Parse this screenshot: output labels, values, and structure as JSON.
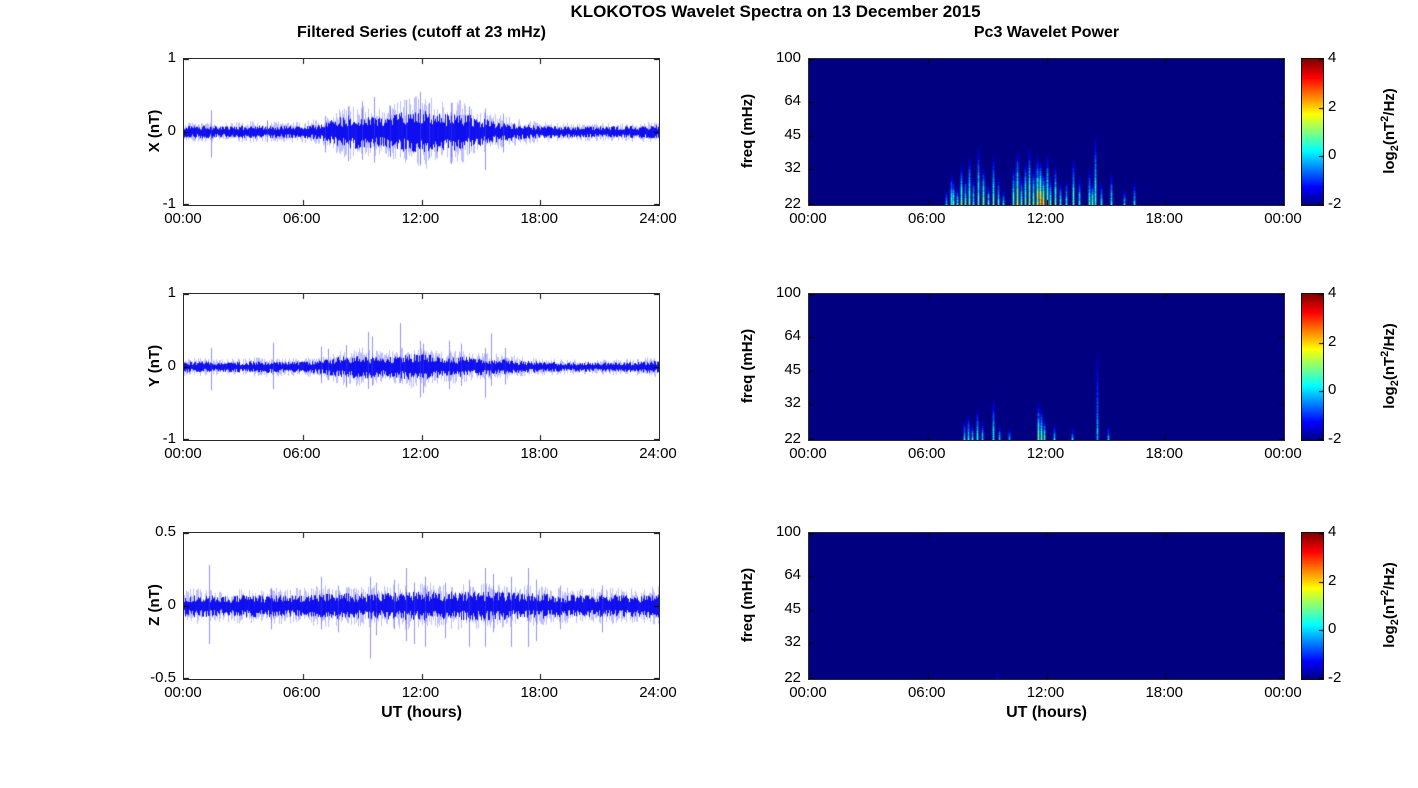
{
  "header": {
    "title": "KLOKOTOS Wavelet Spectra on 13 December 2015",
    "left_subtitle": "Filtered Series (cutoff at 23 mHz)",
    "right_subtitle": "Pc3 Wavelet Power"
  },
  "colorbar": {
    "colormap": "jet",
    "range": [
      -2,
      4
    ],
    "ticks": [
      {
        "v": 4,
        "label": "4"
      },
      {
        "v": 2,
        "label": "2"
      },
      {
        "v": 0,
        "label": "0"
      },
      {
        "v": -2,
        "label": "-2"
      }
    ],
    "label_parts": {
      "p1": "log",
      "sub": "2",
      "p2": "(nT",
      "sup": "2",
      "p3": "/Hz)"
    }
  },
  "chart_data": [
    {
      "id": "x-filtered-series",
      "type": "line",
      "ylabel": "X (nT)",
      "xlabel": "",
      "line_color": "#0000ee",
      "seed": 3,
      "xlim": [
        0,
        24
      ],
      "ylim": [
        -1,
        1
      ],
      "xticks": [
        {
          "v": 0,
          "label": "00:00"
        },
        {
          "v": 6,
          "label": "06:00"
        },
        {
          "v": 12,
          "label": "12:00"
        },
        {
          "v": 18,
          "label": "18:00"
        },
        {
          "v": 24,
          "label": "24:00"
        }
      ],
      "yticks": [
        {
          "v": 1,
          "label": "1"
        },
        {
          "v": 0,
          "label": "0"
        },
        {
          "v": -1,
          "label": "-1"
        }
      ],
      "envelope_nT": [
        0.08,
        0.08,
        0.07,
        0.08,
        0.09,
        0.08,
        0.08,
        0.11,
        0.2,
        0.22,
        0.18,
        0.25,
        0.3,
        0.23,
        0.25,
        0.17,
        0.13,
        0.1,
        0.08,
        0.07,
        0.07,
        0.07,
        0.07,
        0.08,
        0.09
      ],
      "spikes": [
        [
          1.35,
          0.3,
          0.35
        ],
        [
          4.2,
          0.16,
          0.14
        ],
        [
          7.1,
          0.22,
          0.28
        ],
        [
          8.3,
          0.35,
          0.4
        ],
        [
          9.0,
          0.42,
          0.38
        ],
        [
          9.6,
          0.48,
          0.42
        ],
        [
          10.4,
          0.36,
          0.34
        ],
        [
          11.2,
          0.44,
          0.38
        ],
        [
          11.9,
          0.55,
          0.44
        ],
        [
          12.4,
          0.4,
          0.36
        ],
        [
          13.5,
          0.4,
          0.44
        ],
        [
          14.4,
          0.35,
          0.3
        ],
        [
          15.2,
          0.32,
          0.52
        ],
        [
          16.1,
          0.25,
          0.28
        ]
      ]
    },
    {
      "id": "y-filtered-series",
      "type": "line",
      "ylabel": "Y (nT)",
      "xlabel": "",
      "line_color": "#0000ee",
      "seed": 7,
      "xlim": [
        0,
        24
      ],
      "ylim": [
        -1,
        1
      ],
      "xticks": [
        {
          "v": 0,
          "label": "00:00"
        },
        {
          "v": 6,
          "label": "06:00"
        },
        {
          "v": 12,
          "label": "12:00"
        },
        {
          "v": 18,
          "label": "18:00"
        },
        {
          "v": 24,
          "label": "24:00"
        }
      ],
      "yticks": [
        {
          "v": 1,
          "label": "1"
        },
        {
          "v": 0,
          "label": "0"
        },
        {
          "v": -1,
          "label": "-1"
        }
      ],
      "envelope_nT": [
        0.07,
        0.07,
        0.06,
        0.07,
        0.08,
        0.07,
        0.07,
        0.09,
        0.14,
        0.15,
        0.12,
        0.15,
        0.17,
        0.13,
        0.13,
        0.11,
        0.1,
        0.08,
        0.07,
        0.06,
        0.06,
        0.06,
        0.06,
        0.07,
        0.08
      ],
      "spikes": [
        [
          1.35,
          0.26,
          0.32
        ],
        [
          4.5,
          0.33,
          0.3
        ],
        [
          6.9,
          0.28,
          0.22
        ],
        [
          7.3,
          0.25,
          0.18
        ],
        [
          8.2,
          0.3,
          0.28
        ],
        [
          9.3,
          0.48,
          0.3
        ],
        [
          9.5,
          0.42,
          0.26
        ],
        [
          10.9,
          0.6,
          0.22
        ],
        [
          11.9,
          0.36,
          0.42
        ],
        [
          12.1,
          0.32,
          0.36
        ],
        [
          13.4,
          0.36,
          0.3
        ],
        [
          14.0,
          0.32,
          0.26
        ],
        [
          15.2,
          0.26,
          0.42
        ],
        [
          15.5,
          0.46,
          0.26
        ],
        [
          16.2,
          0.26,
          0.24
        ]
      ]
    },
    {
      "id": "z-filtered-series",
      "type": "line",
      "ylabel": "Z (nT)",
      "xlabel": "UT (hours)",
      "line_color": "#0000ee",
      "seed": 13,
      "xlim": [
        0,
        24
      ],
      "ylim": [
        -0.5,
        0.5
      ],
      "xticks": [
        {
          "v": 0,
          "label": "00:00"
        },
        {
          "v": 6,
          "label": "06:00"
        },
        {
          "v": 12,
          "label": "12:00"
        },
        {
          "v": 18,
          "label": "18:00"
        },
        {
          "v": 24,
          "label": "24:00"
        }
      ],
      "yticks": [
        {
          "v": 0.5,
          "label": "0.5"
        },
        {
          "v": 0,
          "label": "0"
        },
        {
          "v": -0.5,
          "label": "-0.5"
        }
      ],
      "envelope_nT": [
        0.07,
        0.07,
        0.06,
        0.07,
        0.07,
        0.07,
        0.07,
        0.08,
        0.08,
        0.08,
        0.08,
        0.09,
        0.09,
        0.09,
        0.09,
        0.09,
        0.09,
        0.08,
        0.08,
        0.07,
        0.07,
        0.07,
        0.07,
        0.07,
        0.08
      ],
      "spikes": [
        [
          1.25,
          0.28,
          0.26
        ],
        [
          4.4,
          0.12,
          0.16
        ],
        [
          6.9,
          0.2,
          0.16
        ],
        [
          7.8,
          0.14,
          0.18
        ],
        [
          9.4,
          0.2,
          0.36
        ],
        [
          9.7,
          0.16,
          0.2
        ],
        [
          10.6,
          0.18,
          0.16
        ],
        [
          11.2,
          0.26,
          0.24
        ],
        [
          11.6,
          0.16,
          0.26
        ],
        [
          12.2,
          0.2,
          0.28
        ],
        [
          13.2,
          0.16,
          0.22
        ],
        [
          14.4,
          0.18,
          0.28
        ],
        [
          15.2,
          0.26,
          0.28
        ],
        [
          15.6,
          0.22,
          0.18
        ],
        [
          16.5,
          0.2,
          0.28
        ],
        [
          17.4,
          0.26,
          0.28
        ],
        [
          17.8,
          0.18,
          0.24
        ],
        [
          19.0,
          0.14,
          0.16
        ],
        [
          21.1,
          0.14,
          0.18
        ]
      ]
    },
    {
      "id": "x-wavelet-power",
      "type": "heatmap",
      "ylabel": "freq (mHz)",
      "xlabel": "",
      "seed": 21,
      "yscale": "log",
      "xlim": [
        0,
        24
      ],
      "ylim": [
        22,
        100
      ],
      "value_range": [
        -2,
        4
      ],
      "background_value": -2,
      "xticks": [
        {
          "v": 0,
          "label": "00:00"
        },
        {
          "v": 6,
          "label": "06:00"
        },
        {
          "v": 12,
          "label": "12:00"
        },
        {
          "v": 18,
          "label": "18:00"
        },
        {
          "v": 24,
          "label": "00:00"
        }
      ],
      "yticks": [
        {
          "v": 100,
          "label": "100"
        },
        {
          "v": 64,
          "label": "64"
        },
        {
          "v": 45,
          "label": "45"
        },
        {
          "v": 32,
          "label": "32"
        },
        {
          "v": 22,
          "label": "22"
        }
      ],
      "streaks": [
        [
          6.9,
          26,
          0.0
        ],
        [
          7.15,
          31,
          0.6
        ],
        [
          7.3,
          29,
          0.9
        ],
        [
          7.5,
          27,
          0.4
        ],
        [
          7.7,
          34,
          1.1
        ],
        [
          7.9,
          30,
          0.6
        ],
        [
          8.1,
          37,
          0.9
        ],
        [
          8.3,
          30,
          0.5
        ],
        [
          8.55,
          41,
          0.8
        ],
        [
          8.8,
          33,
          1.3
        ],
        [
          9.05,
          28,
          0.5
        ],
        [
          9.3,
          37,
          0.9
        ],
        [
          9.55,
          30,
          0.5
        ],
        [
          9.8,
          26,
          0.2
        ],
        [
          10.3,
          33,
          0.9
        ],
        [
          10.5,
          39,
          1.4
        ],
        [
          10.7,
          30,
          0.8
        ],
        [
          10.9,
          35,
          1.1
        ],
        [
          11.1,
          41,
          1.2
        ],
        [
          11.3,
          33,
          1.0
        ],
        [
          11.5,
          37,
          1.6
        ],
        [
          11.65,
          35,
          2.3
        ],
        [
          11.8,
          31,
          1.9
        ],
        [
          12.0,
          38,
          1.1
        ],
        [
          12.2,
          30,
          0.7
        ],
        [
          12.45,
          34,
          0.9
        ],
        [
          12.7,
          28,
          0.5
        ],
        [
          13.0,
          29,
          0.4
        ],
        [
          13.35,
          36,
          0.8
        ],
        [
          13.65,
          30,
          0.4
        ],
        [
          14.15,
          33,
          0.6
        ],
        [
          14.3,
          28,
          1.0
        ],
        [
          14.45,
          46,
          0.7
        ],
        [
          14.75,
          28,
          0.3
        ],
        [
          15.25,
          31,
          0.4
        ],
        [
          15.9,
          26,
          0.1
        ],
        [
          16.4,
          28,
          0.2
        ]
      ]
    },
    {
      "id": "y-wavelet-power",
      "type": "heatmap",
      "ylabel": "freq (mHz)",
      "xlabel": "",
      "seed": 22,
      "yscale": "log",
      "xlim": [
        0,
        24
      ],
      "ylim": [
        22,
        100
      ],
      "value_range": [
        -2,
        4
      ],
      "background_value": -2,
      "xticks": [
        {
          "v": 0,
          "label": "00:00"
        },
        {
          "v": 6,
          "label": "06:00"
        },
        {
          "v": 12,
          "label": "12:00"
        },
        {
          "v": 18,
          "label": "18:00"
        },
        {
          "v": 24,
          "label": "00:00"
        }
      ],
      "yticks": [
        {
          "v": 100,
          "label": "100"
        },
        {
          "v": 64,
          "label": "64"
        },
        {
          "v": 45,
          "label": "45"
        },
        {
          "v": 32,
          "label": "32"
        },
        {
          "v": 22,
          "label": "22"
        }
      ],
      "streaks": [
        [
          7.85,
          27,
          0.3
        ],
        [
          8.05,
          29,
          0.5
        ],
        [
          8.25,
          26,
          0.4
        ],
        [
          8.5,
          31,
          0.45
        ],
        [
          8.75,
          27,
          0.3
        ],
        [
          9.3,
          34,
          0.4
        ],
        [
          9.6,
          26,
          0.2
        ],
        [
          10.1,
          25,
          0.1
        ],
        [
          11.55,
          33,
          0.9
        ],
        [
          11.7,
          31,
          1.0
        ],
        [
          11.85,
          28,
          0.6
        ],
        [
          12.4,
          26,
          0.25
        ],
        [
          13.3,
          25,
          0.1
        ],
        [
          14.55,
          56,
          -0.2
        ],
        [
          15.1,
          26,
          0.0
        ]
      ]
    },
    {
      "id": "z-wavelet-power",
      "type": "heatmap",
      "ylabel": "freq (mHz)",
      "xlabel": "UT (hours)",
      "seed": 23,
      "yscale": "log",
      "xlim": [
        0,
        24
      ],
      "ylim": [
        22,
        100
      ],
      "value_range": [
        -2,
        4
      ],
      "background_value": -2,
      "xticks": [
        {
          "v": 0,
          "label": "00:00"
        },
        {
          "v": 6,
          "label": "06:00"
        },
        {
          "v": 12,
          "label": "12:00"
        },
        {
          "v": 18,
          "label": "18:00"
        },
        {
          "v": 24,
          "label": "00:00"
        }
      ],
      "yticks": [
        {
          "v": 100,
          "label": "100"
        },
        {
          "v": 64,
          "label": "64"
        },
        {
          "v": 45,
          "label": "45"
        },
        {
          "v": 32,
          "label": "32"
        },
        {
          "v": 22,
          "label": "22"
        }
      ],
      "streaks": [
        [
          9.5,
          24,
          -1.4
        ]
      ]
    }
  ]
}
